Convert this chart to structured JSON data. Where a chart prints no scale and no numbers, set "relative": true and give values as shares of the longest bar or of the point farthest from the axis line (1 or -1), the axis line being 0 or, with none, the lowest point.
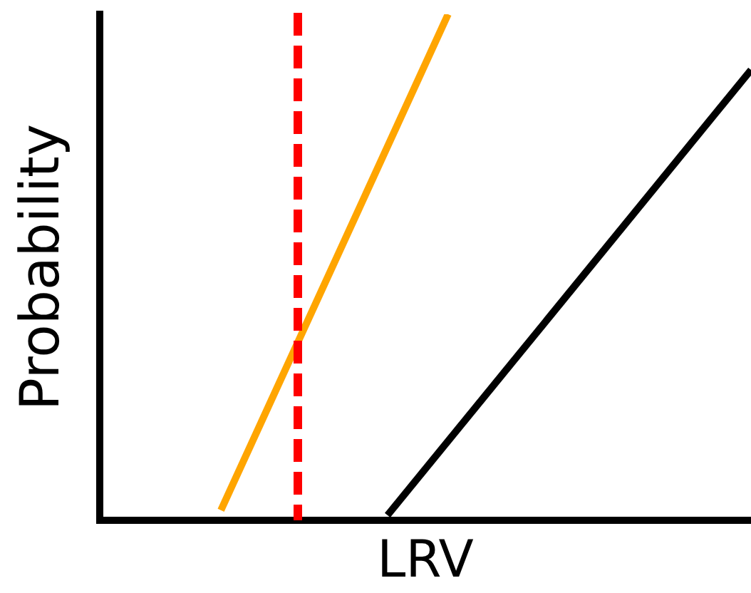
{
  "chart_data": {
    "type": "line",
    "xlabel": "LRV",
    "ylabel": "Probability",
    "relative": true,
    "categories": [
      null,
      null,
      null,
      null,
      null,
      null,
      null,
      null,
      null,
      null,
      null,
      null,
      null,
      null,
      null,
      null,
      null,
      null,
      null,
      null,
      null,
      null,
      null,
      null,
      null,
      null,
      null,
      null,
      null,
      null,
      null,
      null,
      null,
      null,
      null,
      null,
      null,
      null,
      null,
      null,
      null,
      null,
      null,
      null
    ],
    "series": [
      {
        "color": "#ffa500",
        "values": [
          null,
          null,
          null,
          null,
          null,
          null,
          null,
          null,
          0.02,
          null,
          null,
          null,
          null,
          null,
          null,
          null,
          null,
          null,
          null,
          null,
          null,
          null,
          null,
          1,
          null,
          null,
          null,
          null,
          null,
          null,
          null,
          null,
          null,
          null,
          null,
          null,
          null,
          null,
          null,
          null,
          null,
          null,
          null,
          null
        ]
      },
      {
        "color": "#000000",
        "values": [
          null,
          null,
          null,
          null,
          null,
          null,
          null,
          null,
          null,
          null,
          null,
          null,
          null,
          null,
          null,
          null,
          null,
          null,
          null,
          0.01,
          null,
          null,
          null,
          null,
          null,
          null,
          null,
          null,
          null,
          null,
          null,
          null,
          null,
          null,
          null,
          null,
          null,
          null,
          null,
          null,
          null,
          null,
          null,
          0.89
        ]
      }
    ]
  }
}
